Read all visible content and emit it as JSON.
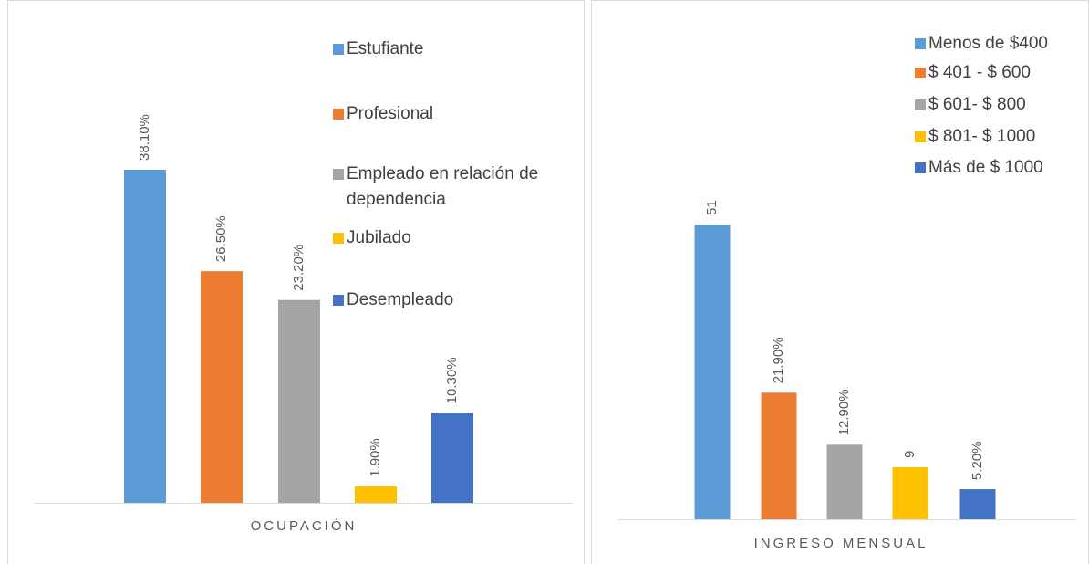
{
  "chart_data": [
    {
      "type": "bar",
      "x_label": "OCUPACIÓN",
      "series": [
        {
          "name": "Estufiante",
          "color": "#5b9bd5",
          "values": [
            38.1
          ],
          "value_labels": [
            "38.10%"
          ]
        },
        {
          "name": "Profesional",
          "color": "#ed7d31",
          "values": [
            26.5
          ],
          "value_labels": [
            "26.50%"
          ]
        },
        {
          "name": "Empleado en relación de dependencia",
          "color": "#a5a5a5",
          "values": [
            23.2
          ],
          "value_labels": [
            "23.20%"
          ]
        },
        {
          "name": "Jubilado",
          "color": "#ffc000",
          "values": [
            1.9
          ],
          "value_labels": [
            "1.90%"
          ]
        },
        {
          "name": "Desempleado",
          "color": "#4472c4",
          "values": [
            10.3
          ],
          "value_labels": [
            "10.30%"
          ]
        }
      ]
    },
    {
      "type": "bar",
      "x_label": "INGRESO MENSUAL",
      "series": [
        {
          "name": "Menos de $400",
          "color": "#5b9bd5",
          "values": [
            51
          ]
        },
        {
          "name": "$ 401 - $ 600",
          "color": "#ed7d31",
          "values": [
            21.9
          ],
          "value_labels": [
            "21.90%"
          ]
        },
        {
          "name": "$ 601- $ 800",
          "color": "#a5a5a5",
          "values": [
            12.9
          ],
          "value_labels": [
            "12.90%"
          ]
        },
        {
          "name": "$ 801- $ 1000",
          "color": "#ffc000",
          "values": [
            9
          ]
        },
        {
          "name": "Más de $ 1000",
          "color": "#4472c4",
          "values": [
            5.2
          ],
          "value_labels": [
            "5.20%"
          ]
        }
      ]
    }
  ]
}
